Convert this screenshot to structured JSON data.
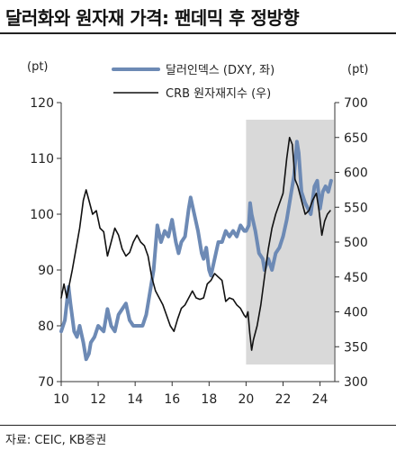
{
  "title": "달러화와 원자재 가격: 팬데믹 후 정방향",
  "source": "자료: CEIC, KB증권",
  "chart_data": {
    "type": "line",
    "left_axis": {
      "unit": "(pt)",
      "range": [
        70,
        120
      ],
      "ticks": [
        70,
        80,
        90,
        100,
        110,
        120
      ]
    },
    "right_axis": {
      "unit": "(pt)",
      "range": [
        300,
        700
      ],
      "ticks": [
        300,
        350,
        400,
        450,
        500,
        550,
        600,
        650,
        700
      ]
    },
    "x_axis": {
      "range": [
        2010,
        2024.8
      ],
      "ticks": [
        2010,
        2012,
        2014,
        2016,
        2018,
        2020,
        2022,
        2024
      ],
      "tick_labels": [
        "10",
        "12",
        "14",
        "16",
        "18",
        "20",
        "22",
        "24"
      ]
    },
    "highlight_region": {
      "x_start": 2020.0,
      "x_end": 2024.75,
      "color": "#d9d9d9"
    },
    "legend_placement": "top-center",
    "series": [
      {
        "name": "달러인덱스 (DXY, 좌)",
        "axis": "left",
        "color": "#6d8ab5",
        "points": [
          [
            2010.0,
            79
          ],
          [
            2010.2,
            81
          ],
          [
            2010.4,
            87
          ],
          [
            2010.5,
            84
          ],
          [
            2010.7,
            79
          ],
          [
            2010.85,
            78
          ],
          [
            2011.0,
            80
          ],
          [
            2011.2,
            77
          ],
          [
            2011.35,
            74
          ],
          [
            2011.5,
            75
          ],
          [
            2011.6,
            77
          ],
          [
            2011.8,
            78
          ],
          [
            2012.0,
            80
          ],
          [
            2012.3,
            79
          ],
          [
            2012.5,
            83
          ],
          [
            2012.7,
            80
          ],
          [
            2012.9,
            79
          ],
          [
            2013.1,
            82
          ],
          [
            2013.3,
            83
          ],
          [
            2013.5,
            84
          ],
          [
            2013.7,
            81
          ],
          [
            2013.9,
            80
          ],
          [
            2014.2,
            80
          ],
          [
            2014.4,
            80
          ],
          [
            2014.6,
            82
          ],
          [
            2014.8,
            86
          ],
          [
            2015.0,
            90
          ],
          [
            2015.2,
            98
          ],
          [
            2015.4,
            95
          ],
          [
            2015.6,
            97
          ],
          [
            2015.8,
            96
          ],
          [
            2016.0,
            99
          ],
          [
            2016.2,
            95
          ],
          [
            2016.35,
            93
          ],
          [
            2016.5,
            95
          ],
          [
            2016.7,
            96
          ],
          [
            2016.9,
            101
          ],
          [
            2017.0,
            103
          ],
          [
            2017.2,
            100
          ],
          [
            2017.4,
            97
          ],
          [
            2017.6,
            93
          ],
          [
            2017.7,
            92
          ],
          [
            2017.85,
            94
          ],
          [
            2018.0,
            90
          ],
          [
            2018.1,
            89
          ],
          [
            2018.3,
            92
          ],
          [
            2018.5,
            95
          ],
          [
            2018.7,
            95
          ],
          [
            2018.9,
            97
          ],
          [
            2019.1,
            96
          ],
          [
            2019.3,
            97
          ],
          [
            2019.5,
            96
          ],
          [
            2019.7,
            98
          ],
          [
            2019.9,
            97
          ],
          [
            2020.0,
            97
          ],
          [
            2020.15,
            98
          ],
          [
            2020.22,
            102
          ],
          [
            2020.3,
            100
          ],
          [
            2020.5,
            97
          ],
          [
            2020.7,
            93
          ],
          [
            2020.9,
            92
          ],
          [
            2021.0,
            90
          ],
          [
            2021.2,
            92
          ],
          [
            2021.4,
            90
          ],
          [
            2021.6,
            93
          ],
          [
            2021.8,
            94
          ],
          [
            2022.0,
            96
          ],
          [
            2022.2,
            99
          ],
          [
            2022.4,
            103
          ],
          [
            2022.6,
            107
          ],
          [
            2022.75,
            113
          ],
          [
            2022.85,
            111
          ],
          [
            2023.0,
            104
          ],
          [
            2023.2,
            102
          ],
          [
            2023.35,
            101
          ],
          [
            2023.5,
            100
          ],
          [
            2023.7,
            105
          ],
          [
            2023.85,
            106
          ],
          [
            2024.0,
            101
          ],
          [
            2024.15,
            104
          ],
          [
            2024.3,
            105
          ],
          [
            2024.45,
            104
          ],
          [
            2024.6,
            106
          ]
        ]
      },
      {
        "name": "CRB 원자재지수 (우)",
        "axis": "right",
        "color": "#111111",
        "points": [
          [
            2010.0,
            420
          ],
          [
            2010.15,
            440
          ],
          [
            2010.3,
            420
          ],
          [
            2010.45,
            440
          ],
          [
            2010.6,
            460
          ],
          [
            2010.8,
            490
          ],
          [
            2011.0,
            520
          ],
          [
            2011.2,
            560
          ],
          [
            2011.35,
            575
          ],
          [
            2011.5,
            560
          ],
          [
            2011.7,
            540
          ],
          [
            2011.9,
            545
          ],
          [
            2012.1,
            520
          ],
          [
            2012.3,
            515
          ],
          [
            2012.5,
            480
          ],
          [
            2012.7,
            500
          ],
          [
            2012.9,
            520
          ],
          [
            2013.1,
            510
          ],
          [
            2013.3,
            490
          ],
          [
            2013.5,
            480
          ],
          [
            2013.7,
            485
          ],
          [
            2013.9,
            500
          ],
          [
            2014.1,
            510
          ],
          [
            2014.3,
            500
          ],
          [
            2014.5,
            495
          ],
          [
            2014.7,
            480
          ],
          [
            2014.9,
            450
          ],
          [
            2015.1,
            430
          ],
          [
            2015.3,
            420
          ],
          [
            2015.5,
            410
          ],
          [
            2015.7,
            395
          ],
          [
            2015.9,
            380
          ],
          [
            2016.1,
            372
          ],
          [
            2016.3,
            390
          ],
          [
            2016.5,
            405
          ],
          [
            2016.7,
            410
          ],
          [
            2016.9,
            420
          ],
          [
            2017.1,
            430
          ],
          [
            2017.3,
            420
          ],
          [
            2017.5,
            418
          ],
          [
            2017.7,
            420
          ],
          [
            2017.9,
            440
          ],
          [
            2018.1,
            445
          ],
          [
            2018.3,
            455
          ],
          [
            2018.5,
            450
          ],
          [
            2018.7,
            445
          ],
          [
            2018.9,
            415
          ],
          [
            2019.1,
            420
          ],
          [
            2019.3,
            418
          ],
          [
            2019.5,
            410
          ],
          [
            2019.7,
            405
          ],
          [
            2019.9,
            395
          ],
          [
            2020.0,
            392
          ],
          [
            2020.1,
            400
          ],
          [
            2020.2,
            370
          ],
          [
            2020.3,
            345
          ],
          [
            2020.4,
            360
          ],
          [
            2020.6,
            380
          ],
          [
            2020.8,
            410
          ],
          [
            2021.0,
            450
          ],
          [
            2021.2,
            490
          ],
          [
            2021.4,
            520
          ],
          [
            2021.6,
            540
          ],
          [
            2021.8,
            555
          ],
          [
            2022.0,
            570
          ],
          [
            2022.2,
            620
          ],
          [
            2022.35,
            650
          ],
          [
            2022.5,
            640
          ],
          [
            2022.65,
            590
          ],
          [
            2022.8,
            580
          ],
          [
            2023.0,
            560
          ],
          [
            2023.2,
            540
          ],
          [
            2023.4,
            545
          ],
          [
            2023.6,
            560
          ],
          [
            2023.8,
            570
          ],
          [
            2023.95,
            545
          ],
          [
            2024.1,
            510
          ],
          [
            2024.25,
            530
          ],
          [
            2024.4,
            540
          ],
          [
            2024.55,
            545
          ]
        ]
      }
    ]
  }
}
